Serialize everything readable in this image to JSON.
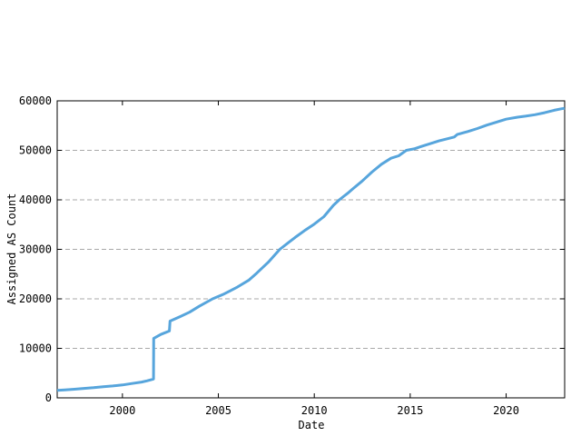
{
  "chart_data": {
    "type": "line",
    "title": "",
    "xlabel": "Date",
    "ylabel": "Assigned AS Count",
    "x_range": [
      1996.6,
      2023.05
    ],
    "y_range": [
      0,
      60000
    ],
    "x_ticks": [
      {
        "value": 2000,
        "label": "2000"
      },
      {
        "value": 2005,
        "label": "2005"
      },
      {
        "value": 2010,
        "label": "2010"
      },
      {
        "value": 2015,
        "label": "2015"
      },
      {
        "value": 2020,
        "label": "2020"
      }
    ],
    "y_ticks": [
      {
        "value": 0,
        "label": "0"
      },
      {
        "value": 10000,
        "label": "10000"
      },
      {
        "value": 20000,
        "label": "20000"
      },
      {
        "value": 30000,
        "label": "30000"
      },
      {
        "value": 40000,
        "label": "40000"
      },
      {
        "value": 50000,
        "label": "50000"
      },
      {
        "value": 60000,
        "label": "60000"
      }
    ],
    "grid": "horizontal-dashed-at-y-ticks",
    "legend": "none",
    "colors": {
      "line": "#57A5DC",
      "grid": "#A8A8A8",
      "frame": "#000000",
      "text": "#000000",
      "background": "#FFFFFF"
    },
    "series": [
      {
        "name": "Assigned AS Count",
        "points": [
          [
            1996.6,
            1500
          ],
          [
            1997.0,
            1600
          ],
          [
            1997.5,
            1750
          ],
          [
            1998.0,
            1900
          ],
          [
            1998.5,
            2050
          ],
          [
            1999.0,
            2250
          ],
          [
            1999.5,
            2400
          ],
          [
            2000.0,
            2600
          ],
          [
            2000.5,
            2900
          ],
          [
            2001.0,
            3200
          ],
          [
            2001.3,
            3450
          ],
          [
            2001.62,
            3800
          ],
          [
            2001.63,
            12000
          ],
          [
            2002.0,
            12800
          ],
          [
            2002.45,
            13500
          ],
          [
            2002.48,
            15500
          ],
          [
            2003.0,
            16400
          ],
          [
            2003.5,
            17300
          ],
          [
            2004.0,
            18500
          ],
          [
            2004.7,
            20000
          ],
          [
            2005.3,
            21000
          ],
          [
            2006.0,
            22400
          ],
          [
            2006.6,
            23800
          ],
          [
            2007.0,
            25200
          ],
          [
            2007.6,
            27400
          ],
          [
            2008.2,
            30000
          ],
          [
            2008.7,
            31500
          ],
          [
            2009.0,
            32400
          ],
          [
            2009.5,
            33800
          ],
          [
            2010.0,
            35100
          ],
          [
            2010.5,
            36600
          ],
          [
            2011.0,
            38900
          ],
          [
            2011.3,
            40000
          ],
          [
            2011.8,
            41500
          ],
          [
            2012.0,
            42200
          ],
          [
            2012.5,
            43800
          ],
          [
            2013.0,
            45600
          ],
          [
            2013.5,
            47200
          ],
          [
            2014.0,
            48400
          ],
          [
            2014.4,
            48900
          ],
          [
            2014.8,
            50000
          ],
          [
            2015.2,
            50300
          ],
          [
            2015.6,
            50800
          ],
          [
            2016.0,
            51300
          ],
          [
            2016.5,
            51900
          ],
          [
            2017.0,
            52400
          ],
          [
            2017.3,
            52700
          ],
          [
            2017.45,
            53200
          ],
          [
            2018.0,
            53800
          ],
          [
            2018.5,
            54400
          ],
          [
            2019.0,
            55100
          ],
          [
            2019.5,
            55700
          ],
          [
            2020.0,
            56300
          ],
          [
            2020.6,
            56700
          ],
          [
            2021.0,
            56900
          ],
          [
            2021.5,
            57200
          ],
          [
            2022.0,
            57600
          ],
          [
            2022.5,
            58100
          ],
          [
            2022.9,
            58400
          ],
          [
            2023.05,
            58500
          ]
        ]
      }
    ]
  }
}
